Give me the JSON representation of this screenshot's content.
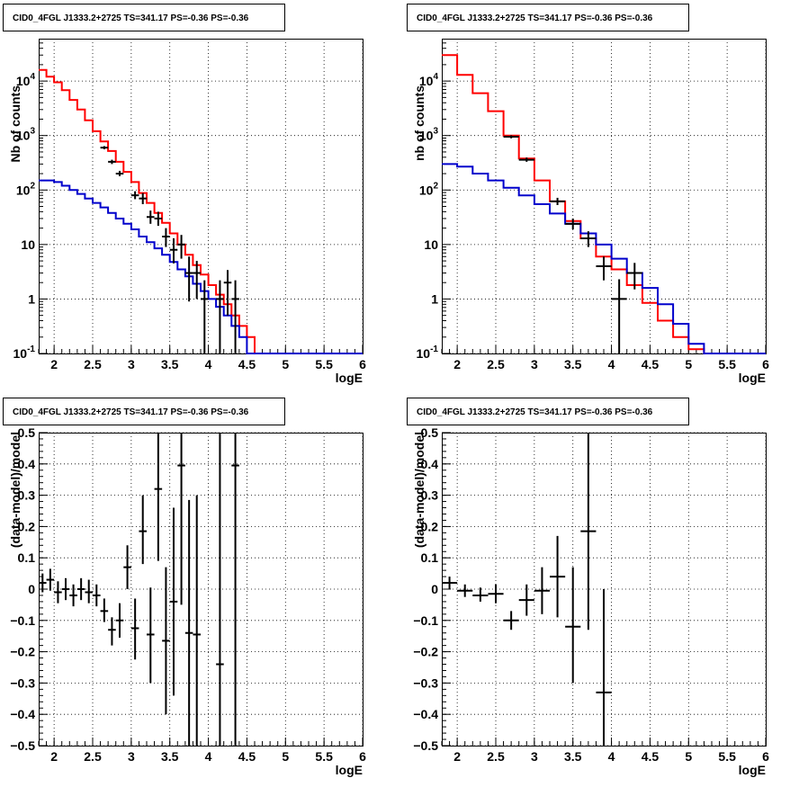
{
  "colors": {
    "data": "#000000",
    "total_model": "#ff0000",
    "component_model": "#0000cc",
    "grid": "#000000"
  },
  "chart_data": [
    {
      "type": "step-histogram",
      "title": "CID0_4FGL J1333.2+2725 TS=341.17 PS=-0.36 PS=-0.36",
      "xlabel": "logE",
      "ylabel": "Nb of counts",
      "xlim": [
        1.8,
        6.0
      ],
      "ylim": [
        0.1,
        60000
      ],
      "yscale": "log",
      "grid": true,
      "xticks": [
        "2",
        "2.5",
        "3",
        "3.5",
        "4",
        "4.5",
        "5",
        "5.5",
        "6"
      ],
      "yticks": [
        {
          "value": 0.1,
          "label": "10^-1"
        },
        {
          "value": 1,
          "label": "1"
        },
        {
          "value": 10,
          "label": "10"
        },
        {
          "value": 100,
          "label": "10^2"
        },
        {
          "value": 1000,
          "label": "10^3"
        },
        {
          "value": 10000,
          "label": "10^4"
        }
      ],
      "series": [
        {
          "role": "total_model",
          "kind": "step",
          "bin_width": 0.1,
          "x_start": 1.8,
          "values": [
            16000,
            12000,
            9500,
            6800,
            4500,
            3000,
            1900,
            1200,
            780,
            520,
            330,
            215,
            140,
            88,
            58,
            38,
            25,
            16,
            10,
            6.5,
            4.2,
            2.8,
            1.8,
            1.2,
            0.8,
            0.5,
            0.32,
            0.2,
            0.1,
            0.1,
            0.1,
            0.1,
            0.1,
            0.1,
            0.1,
            0.1,
            0.1,
            0.1,
            0.1,
            0.1,
            0.1,
            0.1
          ]
        },
        {
          "role": "component_model",
          "kind": "step",
          "bin_width": 0.1,
          "x_start": 1.8,
          "values": [
            150,
            150,
            140,
            120,
            100,
            85,
            70,
            58,
            48,
            38,
            30,
            24,
            19,
            14,
            11,
            8.5,
            6.5,
            4.8,
            3.5,
            2.6,
            1.9,
            1.4,
            1.0,
            0.72,
            0.5,
            0.32,
            0.2,
            0.1,
            0.1,
            0.1,
            0.1,
            0.1,
            0.1,
            0.1,
            0.1,
            0.1,
            0.1,
            0.1,
            0.1,
            0.1,
            0.1,
            0.1
          ]
        },
        {
          "role": "data",
          "kind": "errorbar",
          "points": [
            {
              "x": 2.65,
              "y": 600,
              "ylo": 560,
              "yhi": 640,
              "xerr": 0.05
            },
            {
              "x": 2.75,
              "y": 330,
              "ylo": 300,
              "yhi": 360,
              "xerr": 0.05
            },
            {
              "x": 2.85,
              "y": 200,
              "ylo": 180,
              "yhi": 225,
              "xerr": 0.05
            },
            {
              "x": 3.05,
              "y": 80,
              "ylo": 68,
              "yhi": 95,
              "xerr": 0.05
            },
            {
              "x": 3.15,
              "y": 70,
              "ylo": 55,
              "yhi": 88,
              "xerr": 0.05
            },
            {
              "x": 3.25,
              "y": 32,
              "ylo": 24,
              "yhi": 42,
              "xerr": 0.05
            },
            {
              "x": 3.35,
              "y": 30,
              "ylo": 22,
              "yhi": 40,
              "xerr": 0.05
            },
            {
              "x": 3.45,
              "y": 14,
              "ylo": 9,
              "yhi": 20,
              "xerr": 0.05
            },
            {
              "x": 3.55,
              "y": 8,
              "ylo": 4.5,
              "yhi": 13,
              "xerr": 0.05
            },
            {
              "x": 3.65,
              "y": 10,
              "ylo": 5.5,
              "yhi": 15,
              "xerr": 0.05
            },
            {
              "x": 3.75,
              "y": 3,
              "ylo": 0.9,
              "yhi": 6,
              "xerr": 0.05
            },
            {
              "x": 3.85,
              "y": 3,
              "ylo": 1,
              "yhi": 5,
              "xerr": 0.05
            },
            {
              "x": 3.95,
              "y": 1,
              "ylo": 0.1,
              "yhi": 2.2,
              "xerr": 0.05
            },
            {
              "x": 4.15,
              "y": 1,
              "ylo": 0.1,
              "yhi": 2.2,
              "xerr": 0.05
            },
            {
              "x": 4.25,
              "y": 2,
              "ylo": 0.5,
              "yhi": 3.4,
              "xerr": 0.05
            },
            {
              "x": 4.35,
              "y": 1,
              "ylo": 0.1,
              "yhi": 2.2,
              "xerr": 0.05
            }
          ]
        }
      ]
    },
    {
      "type": "step-histogram",
      "title": "CID0_4FGL J1333.2+2725 TS=341.17 PS=-0.36 PS=-0.36",
      "xlabel": "logE",
      "ylabel": "nb of counts",
      "xlim": [
        1.8,
        6.0
      ],
      "ylim": [
        0.1,
        60000
      ],
      "yscale": "log",
      "grid": true,
      "xticks": [
        "2",
        "2.5",
        "3",
        "3.5",
        "4",
        "4.5",
        "5",
        "5.5",
        "6"
      ],
      "yticks": [
        {
          "value": 0.1,
          "label": "10^-1"
        },
        {
          "value": 1,
          "label": "1"
        },
        {
          "value": 10,
          "label": "10"
        },
        {
          "value": 100,
          "label": "10^2"
        },
        {
          "value": 1000,
          "label": "10^3"
        },
        {
          "value": 10000,
          "label": "10^4"
        }
      ],
      "series": [
        {
          "role": "total_model",
          "kind": "step",
          "bin_width": 0.2,
          "x_start": 1.8,
          "values": [
            30000,
            13000,
            6000,
            2800,
            1000,
            380,
            150,
            62,
            27,
            13,
            6,
            3.5,
            1.8,
            0.85,
            0.4,
            0.2,
            0.12,
            0.1,
            0.1,
            0.1,
            0.1
          ]
        },
        {
          "role": "component_model",
          "kind": "step",
          "bin_width": 0.2,
          "x_start": 1.8,
          "values": [
            300,
            270,
            200,
            150,
            110,
            80,
            55,
            37,
            24,
            16,
            10,
            5.5,
            3,
            1.6,
            0.8,
            0.35,
            0.15,
            0.1,
            0.1,
            0.1,
            0.1
          ]
        },
        {
          "role": "data",
          "kind": "errorbar",
          "points": [
            {
              "x": 2.7,
              "y": 950,
              "ylo": 890,
              "yhi": 1010,
              "xerr": 0.1
            },
            {
              "x": 2.9,
              "y": 360,
              "ylo": 330,
              "yhi": 395,
              "xerr": 0.1
            },
            {
              "x": 3.3,
              "y": 62,
              "ylo": 53,
              "yhi": 72,
              "xerr": 0.1
            },
            {
              "x": 3.5,
              "y": 24,
              "ylo": 19,
              "yhi": 30,
              "xerr": 0.1
            },
            {
              "x": 3.7,
              "y": 13,
              "ylo": 9,
              "yhi": 17.5,
              "xerr": 0.1
            },
            {
              "x": 3.9,
              "y": 4,
              "ylo": 2.2,
              "yhi": 6,
              "xerr": 0.1
            },
            {
              "x": 4.1,
              "y": 1,
              "ylo": 0.1,
              "yhi": 2.3,
              "xerr": 0.1
            },
            {
              "x": 4.3,
              "y": 3,
              "ylo": 1.5,
              "yhi": 4.6,
              "xerr": 0.1
            }
          ]
        }
      ]
    },
    {
      "type": "errorbar",
      "title": "CID0_4FGL J1333.2+2725 TS=341.17 PS=-0.36 PS=-0.36",
      "xlabel": "logE",
      "ylabel": "(data-model)/model",
      "xlim": [
        1.8,
        6.0
      ],
      "ylim": [
        -0.5,
        0.5
      ],
      "yscale": "linear",
      "grid": true,
      "xticks": [
        "2",
        "2.5",
        "3",
        "3.5",
        "4",
        "4.5",
        "5",
        "5.5",
        "6"
      ],
      "yticks": [
        "-0.5",
        "-0.4",
        "-0.3",
        "-0.2",
        "-0.1",
        "0",
        "0.1",
        "0.2",
        "0.3",
        "0.4",
        "0.5"
      ],
      "series": [
        {
          "role": "data",
          "kind": "errorbar",
          "points": [
            {
              "x": 1.85,
              "y": 0.02,
              "ylo": -0.01,
              "yhi": 0.05,
              "xerr": 0.05
            },
            {
              "x": 1.95,
              "y": 0.03,
              "ylo": -0.005,
              "yhi": 0.065,
              "xerr": 0.05
            },
            {
              "x": 2.05,
              "y": -0.01,
              "ylo": -0.045,
              "yhi": 0.025,
              "xerr": 0.05
            },
            {
              "x": 2.15,
              "y": 0.0,
              "ylo": -0.035,
              "yhi": 0.035,
              "xerr": 0.05
            },
            {
              "x": 2.25,
              "y": -0.02,
              "ylo": -0.055,
              "yhi": 0.015,
              "xerr": 0.05
            },
            {
              "x": 2.35,
              "y": 0.0,
              "ylo": -0.035,
              "yhi": 0.035,
              "xerr": 0.05
            },
            {
              "x": 2.45,
              "y": -0.01,
              "ylo": -0.045,
              "yhi": 0.03,
              "xerr": 0.05
            },
            {
              "x": 2.55,
              "y": -0.02,
              "ylo": -0.055,
              "yhi": 0.015,
              "xerr": 0.05
            },
            {
              "x": 2.65,
              "y": -0.07,
              "ylo": -0.105,
              "yhi": -0.03,
              "xerr": 0.05
            },
            {
              "x": 2.75,
              "y": -0.13,
              "ylo": -0.18,
              "yhi": -0.09,
              "xerr": 0.05
            },
            {
              "x": 2.85,
              "y": -0.1,
              "ylo": -0.155,
              "yhi": -0.045,
              "xerr": 0.05
            },
            {
              "x": 2.95,
              "y": 0.07,
              "ylo": 0.0,
              "yhi": 0.14,
              "xerr": 0.05
            },
            {
              "x": 3.05,
              "y": -0.125,
              "ylo": -0.225,
              "yhi": -0.03,
              "xerr": 0.05
            },
            {
              "x": 3.15,
              "y": 0.185,
              "ylo": 0.08,
              "yhi": 0.3,
              "xerr": 0.05
            },
            {
              "x": 3.25,
              "y": -0.145,
              "ylo": -0.3,
              "yhi": 0.005,
              "xerr": 0.05
            },
            {
              "x": 3.35,
              "y": 0.32,
              "ylo": 0.09,
              "yhi": 0.5,
              "xerr": 0.05
            },
            {
              "x": 3.45,
              "y": -0.165,
              "ylo": -0.4,
              "yhi": 0.07,
              "xerr": 0.05
            },
            {
              "x": 3.55,
              "y": -0.04,
              "ylo": -0.34,
              "yhi": 0.26,
              "xerr": 0.05
            },
            {
              "x": 3.65,
              "y": 0.395,
              "ylo": -0.05,
              "yhi": 0.5,
              "xerr": 0.05
            },
            {
              "x": 3.75,
              "y": -0.14,
              "ylo": -0.5,
              "yhi": 0.285,
              "xerr": 0.05
            },
            {
              "x": 3.85,
              "y": -0.145,
              "ylo": -0.5,
              "yhi": 0.3,
              "xerr": 0.05
            },
            {
              "x": 4.15,
              "y": -0.24,
              "ylo": -0.5,
              "yhi": 0.5,
              "xerr": 0.05
            },
            {
              "x": 4.35,
              "y": 0.395,
              "ylo": -0.5,
              "yhi": 0.5,
              "xerr": 0.05
            }
          ]
        }
      ]
    },
    {
      "type": "errorbar",
      "title": "CID0_4FGL J1333.2+2725 TS=341.17 PS=-0.36 PS=-0.36",
      "xlabel": "logE",
      "ylabel": "(data-model)/model",
      "xlim": [
        1.8,
        6.0
      ],
      "ylim": [
        -0.5,
        0.5
      ],
      "yscale": "linear",
      "grid": true,
      "xticks": [
        "2",
        "2.5",
        "3",
        "3.5",
        "4",
        "4.5",
        "5",
        "5.5",
        "6"
      ],
      "yticks": [
        "-0.5",
        "-0.4",
        "-0.3",
        "-0.2",
        "-0.1",
        "0",
        "0.1",
        "0.2",
        "0.3",
        "0.4",
        "0.5"
      ],
      "series": [
        {
          "role": "data",
          "kind": "errorbar",
          "points": [
            {
              "x": 1.9,
              "y": 0.02,
              "ylo": 0.0,
              "yhi": 0.04,
              "xerr": 0.1
            },
            {
              "x": 2.1,
              "y": -0.005,
              "ylo": -0.025,
              "yhi": 0.015,
              "xerr": 0.1
            },
            {
              "x": 2.3,
              "y": -0.02,
              "ylo": -0.04,
              "yhi": 0.005,
              "xerr": 0.1
            },
            {
              "x": 2.5,
              "y": -0.015,
              "ylo": -0.045,
              "yhi": 0.015,
              "xerr": 0.1
            },
            {
              "x": 2.7,
              "y": -0.1,
              "ylo": -0.13,
              "yhi": -0.07,
              "xerr": 0.1
            },
            {
              "x": 2.9,
              "y": -0.035,
              "ylo": -0.085,
              "yhi": 0.015,
              "xerr": 0.1
            },
            {
              "x": 3.1,
              "y": -0.005,
              "ylo": -0.08,
              "yhi": 0.07,
              "xerr": 0.1
            },
            {
              "x": 3.3,
              "y": 0.04,
              "ylo": -0.09,
              "yhi": 0.17,
              "xerr": 0.1
            },
            {
              "x": 3.5,
              "y": -0.12,
              "ylo": -0.3,
              "yhi": 0.07,
              "xerr": 0.1
            },
            {
              "x": 3.7,
              "y": 0.185,
              "ylo": -0.13,
              "yhi": 0.5,
              "xerr": 0.1
            },
            {
              "x": 3.9,
              "y": -0.33,
              "ylo": -0.5,
              "yhi": 0.0,
              "xerr": 0.1
            }
          ]
        }
      ]
    }
  ]
}
